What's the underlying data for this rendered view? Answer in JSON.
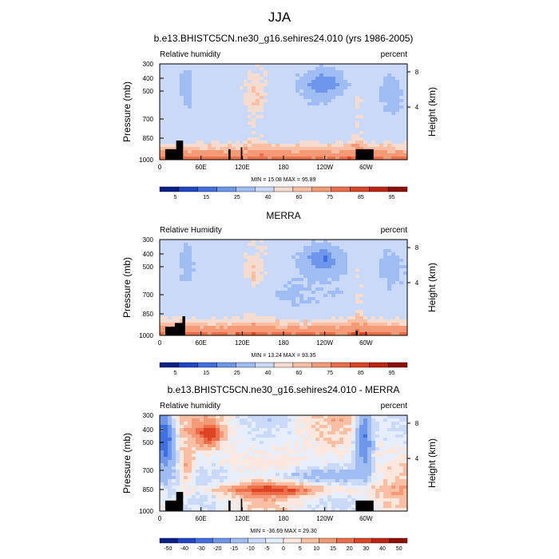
{
  "figure": {
    "season_title": "JJA"
  },
  "colors": {
    "rh_levels": [
      "#0a1f8a",
      "#1f46c7",
      "#3f6fe0",
      "#6e97ec",
      "#9fbcf3",
      "#c9d9f7",
      "#f4dcd0",
      "#f9bfa4",
      "#f59a76",
      "#ec6e4a",
      "#dc4424",
      "#c0240f",
      "#8e0d05"
    ],
    "diff_levels": [
      "#0a1f8a",
      "#1f46c7",
      "#3f6fe0",
      "#6e97ec",
      "#9fbcf3",
      "#c9d9f7",
      "#e6edfb",
      "#fbe7dd",
      "#f9bfa4",
      "#f59a76",
      "#ec6e4a",
      "#dc4424",
      "#c0240f",
      "#8e0d05"
    ],
    "topography": "#000000"
  },
  "chart_data": [
    {
      "type": "heatmap",
      "title": "b.e13.BHISTC5CN.ne30_g16.sehires24.010 (yrs 1986-2005)",
      "left_label": "Relative humidity",
      "right_label": "percent",
      "xlabel": "",
      "ylabel": "Pressure (mb)",
      "ylabel_right": "Height (km)",
      "x_ticks": [
        "0",
        "60E",
        "120E",
        "180",
        "120W",
        "60W"
      ],
      "y_ticks": [
        "300",
        "400",
        "500",
        "700",
        "850",
        "1000"
      ],
      "y_ticks_right": [
        "8",
        "4"
      ],
      "min_max": "MIN = 15.08  MAX = 95.89",
      "ylim": [
        1000,
        300
      ],
      "xlim": [
        0,
        360
      ],
      "colorbar_labels": [
        "5",
        "15",
        "25",
        "40",
        "60",
        "75",
        "85",
        "95"
      ]
    },
    {
      "type": "heatmap",
      "title": "MERRA",
      "left_label": "Relative Humidity",
      "right_label": "percent",
      "xlabel": "",
      "ylabel": "Pressure (mb)",
      "ylabel_right": "Height (km)",
      "x_ticks": [
        "0",
        "60E",
        "120E",
        "180",
        "120W",
        "60W"
      ],
      "y_ticks": [
        "300",
        "400",
        "500",
        "700",
        "850",
        "1000"
      ],
      "y_ticks_right": [
        "8",
        "4"
      ],
      "min_max": "MIN = 13.24  MAX = 93.35",
      "ylim": [
        1000,
        300
      ],
      "xlim": [
        0,
        360
      ],
      "colorbar_labels": [
        "5",
        "15",
        "25",
        "40",
        "60",
        "75",
        "85",
        "95"
      ]
    },
    {
      "type": "heatmap",
      "title": "b.e13.BHISTC5CN.ne30_g16.sehires24.010 - MERRA",
      "left_label": "Relative humidity",
      "right_label": "percent",
      "xlabel": "",
      "ylabel": "Pressure (mb)",
      "ylabel_right": "Height (km)",
      "x_ticks": [
        "0",
        "60E",
        "120E",
        "180",
        "120W",
        "60W"
      ],
      "y_ticks": [
        "300",
        "400",
        "500",
        "700",
        "850",
        "1000"
      ],
      "y_ticks_right": [
        "8",
        "4"
      ],
      "min_max": "MIN = -36.69  MAX = 29.30",
      "ylim": [
        1000,
        300
      ],
      "xlim": [
        0,
        360
      ],
      "colorbar_labels": [
        "-50",
        "-40",
        "-30",
        "-20",
        "-15",
        "-10",
        "-5",
        "0",
        "5",
        "10",
        "15",
        "20",
        "30",
        "40",
        "50"
      ]
    }
  ]
}
